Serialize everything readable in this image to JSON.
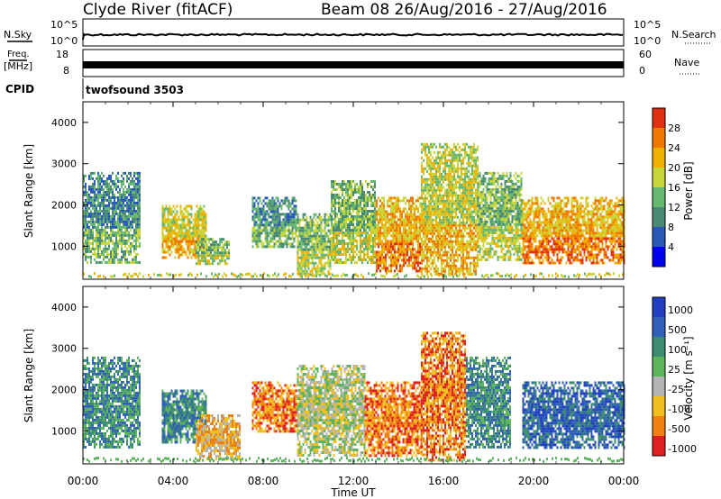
{
  "header": {
    "title": "Clyde River (fitACF)",
    "beam_info": "Beam 08  26/Aug/2016 - 27/Aug/2016"
  },
  "aux": {
    "nsky_label": "N.Sky",
    "nsky_ticks": [
      "10^5",
      "10^0"
    ],
    "nsearch_label": "N.Search",
    "nsearch_ticks": [
      "10^5",
      "10^0"
    ],
    "freq_label_1": "Freq.",
    "freq_label_2": "[MHz]",
    "freq_ticks": [
      "18",
      "8"
    ],
    "nave_label": "Nave",
    "nave_ticks": [
      "60",
      "0"
    ],
    "cpid_label": "CPID",
    "cpid_value": "twofsound 3503"
  },
  "chart_data": [
    {
      "type": "heatmap",
      "name": "power",
      "xlabel": "",
      "ylabel": "Slant Range [km]",
      "yticks": [
        "1000",
        "2000",
        "3000",
        "4000"
      ],
      "ylim": [
        200,
        4500
      ],
      "xlim_hours": [
        0,
        24
      ],
      "colorbar": {
        "label": "Power [dB]",
        "ticks": [
          "4",
          "8",
          "12",
          "16",
          "20",
          "24",
          "28"
        ],
        "range": [
          0,
          32
        ],
        "colors": [
          "#0000f0",
          "#2858b8",
          "#4a8a72",
          "#66b870",
          "#c8d63a",
          "#f0b000",
          "#f07800",
          "#e03010"
        ]
      },
      "echo_regions": [
        {
          "t": [
            0.0,
            2.5
          ],
          "r": [
            600,
            2800
          ],
          "level": 11
        },
        {
          "t": [
            3.5,
            5.5
          ],
          "r": [
            700,
            2000
          ],
          "level": 19
        },
        {
          "t": [
            5.0,
            6.5
          ],
          "r": [
            600,
            1200
          ],
          "level": 14
        },
        {
          "t": [
            7.5,
            9.5
          ],
          "r": [
            1000,
            2200
          ],
          "level": 11
        },
        {
          "t": [
            9.5,
            11.0
          ],
          "r": [
            300,
            1800
          ],
          "level": 15
        },
        {
          "t": [
            11.0,
            13.0
          ],
          "r": [
            600,
            2600
          ],
          "level": 13
        },
        {
          "t": [
            13.0,
            15.0
          ],
          "r": [
            400,
            2200
          ],
          "level": 20
        },
        {
          "t": [
            15.0,
            17.5
          ],
          "r": [
            300,
            3500
          ],
          "level": 19
        },
        {
          "t": [
            17.5,
            19.5
          ],
          "r": [
            700,
            2800
          ],
          "level": 13
        },
        {
          "t": [
            19.5,
            24.0
          ],
          "r": [
            600,
            2200
          ],
          "level": 20
        }
      ]
    },
    {
      "type": "heatmap",
      "name": "velocity",
      "xlabel": "Time UT",
      "ylabel": "Slant Range [km]",
      "yticks": [
        "1000",
        "2000",
        "3000",
        "4000"
      ],
      "xticks": [
        "00:00",
        "04:00",
        "08:00",
        "12:00",
        "16:00",
        "20:00",
        "00:00"
      ],
      "ylim": [
        200,
        4500
      ],
      "xlim_hours": [
        0,
        24
      ],
      "colorbar": {
        "label": "Velocity [m s⁻¹]",
        "ticks": [
          "1000",
          "500",
          "100",
          "25",
          "-25",
          "-100",
          "-500",
          "-1000"
        ],
        "colors": [
          "#2040c0",
          "#3060b8",
          "#3c8c70",
          "#5cb45c",
          "#b4b4b4",
          "#f0c020",
          "#f08010",
          "#e02020"
        ]
      },
      "echo_regions": [
        {
          "t": [
            0.0,
            2.5
          ],
          "r": [
            600,
            2800
          ],
          "level": "100"
        },
        {
          "t": [
            3.5,
            5.5
          ],
          "r": [
            700,
            2000
          ],
          "level": "100"
        },
        {
          "t": [
            5.0,
            7.0
          ],
          "r": [
            300,
            1400
          ],
          "level": "-100"
        },
        {
          "t": [
            7.5,
            9.5
          ],
          "r": [
            1000,
            2200
          ],
          "level": "-500"
        },
        {
          "t": [
            9.5,
            12.5
          ],
          "r": [
            400,
            2600
          ],
          "level": "-25"
        },
        {
          "t": [
            12.5,
            15.0
          ],
          "r": [
            400,
            2200
          ],
          "level": "-500"
        },
        {
          "t": [
            15.0,
            17.0
          ],
          "r": [
            300,
            3400
          ],
          "level": "-500"
        },
        {
          "t": [
            17.0,
            19.0
          ],
          "r": [
            600,
            2800
          ],
          "level": "100"
        },
        {
          "t": [
            19.5,
            24.0
          ],
          "r": [
            600,
            2200
          ],
          "level": "500"
        }
      ]
    }
  ]
}
